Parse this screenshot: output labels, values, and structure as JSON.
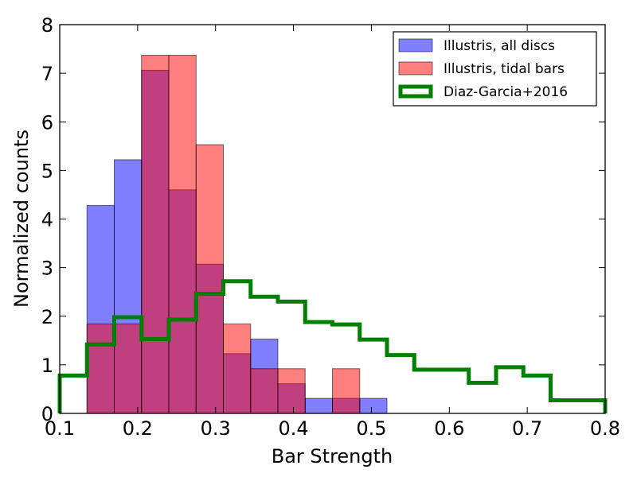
{
  "chart_data": {
    "type": "histogram",
    "title": "",
    "xlabel": "Bar Strength",
    "ylabel": "Normalized counts",
    "xlim": [
      0.1,
      0.8
    ],
    "ylim": [
      0,
      8
    ],
    "xticks": [
      "0.1",
      "0.2",
      "0.3",
      "0.4",
      "0.5",
      "0.6",
      "0.7",
      "0.8"
    ],
    "yticks": [
      "0",
      "1",
      "2",
      "3",
      "4",
      "5",
      "6",
      "7",
      "8"
    ],
    "grid": false,
    "legend_position": "top-right",
    "series": [
      {
        "name": "Illustris, all discs",
        "kind": "filled-histogram",
        "color": "#0000ff",
        "bin_edges": [
          0.135,
          0.17,
          0.205,
          0.24,
          0.275,
          0.31,
          0.345,
          0.38,
          0.415,
          0.45,
          0.485,
          0.52
        ],
        "values": [
          4.28,
          5.22,
          7.06,
          4.6,
          3.07,
          1.23,
          1.53,
          0.61,
          0.31,
          0.31,
          0.31
        ]
      },
      {
        "name": "Illustris, tidal bars",
        "kind": "filled-histogram",
        "color": "#ff0000",
        "bin_edges": [
          0.135,
          0.17,
          0.205,
          0.24,
          0.275,
          0.31,
          0.345,
          0.38,
          0.415,
          0.45,
          0.485
        ],
        "values": [
          1.84,
          1.84,
          7.37,
          7.37,
          5.53,
          1.84,
          0.92,
          0.92,
          0,
          0.92
        ]
      },
      {
        "name": "Diaz-Garcia+2016",
        "kind": "step-histogram",
        "color": "#008000",
        "bin_edges": [
          0.1,
          0.135,
          0.17,
          0.205,
          0.24,
          0.275,
          0.31,
          0.345,
          0.38,
          0.415,
          0.45,
          0.485,
          0.52,
          0.555,
          0.59,
          0.625,
          0.66,
          0.695,
          0.73,
          0.765,
          0.8
        ],
        "values": [
          0.78,
          1.42,
          1.98,
          1.53,
          1.93,
          2.46,
          2.72,
          2.4,
          2.3,
          1.88,
          1.83,
          1.52,
          1.2,
          0.9,
          0.9,
          0.63,
          0.95,
          0.78,
          0.27,
          0.27
        ]
      }
    ]
  }
}
